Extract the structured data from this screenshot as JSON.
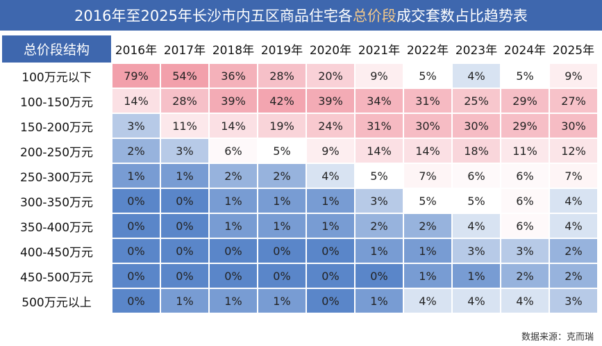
{
  "title": {
    "prefix": "2016年至2025年长沙市内五区商品住宅各",
    "highlight": "总价段",
    "suffix": "成交套数占比趋势表"
  },
  "colors": {
    "header_bg": "#3e67ae",
    "title_highlight": "#f3c98b",
    "high_pink": "#f2a0ab",
    "low_blue": "#5a86c9"
  },
  "source": "数据来源：克而瑞",
  "chart_data": {
    "type": "heatmap",
    "corner_label": "总价段结构",
    "columns": [
      "2016年",
      "2017年",
      "2018年",
      "2019年",
      "2020年",
      "2021年",
      "2022年",
      "2023年",
      "2024年",
      "2025年"
    ],
    "rows": [
      {
        "label": "100万元以下",
        "values": [
          "79%",
          "54%",
          "36%",
          "28%",
          "20%",
          "9%",
          "5%",
          "4%",
          "5%",
          "9%"
        ]
      },
      {
        "label": "100-150万元",
        "values": [
          "14%",
          "28%",
          "39%",
          "42%",
          "39%",
          "34%",
          "31%",
          "25%",
          "29%",
          "27%"
        ]
      },
      {
        "label": "150-200万元",
        "values": [
          "3%",
          "11%",
          "14%",
          "19%",
          "24%",
          "31%",
          "30%",
          "30%",
          "29%",
          "30%"
        ]
      },
      {
        "label": "200-250万元",
        "values": [
          "2%",
          "3%",
          "6%",
          "5%",
          "9%",
          "14%",
          "14%",
          "18%",
          "11%",
          "12%"
        ]
      },
      {
        "label": "250-300万元",
        "values": [
          "1%",
          "1%",
          "2%",
          "2%",
          "4%",
          "5%",
          "7%",
          "6%",
          "6%",
          "7%"
        ]
      },
      {
        "label": "300-350万元",
        "values": [
          "0%",
          "0%",
          "1%",
          "1%",
          "1%",
          "3%",
          "5%",
          "5%",
          "6%",
          "4%"
        ]
      },
      {
        "label": "350-400万元",
        "values": [
          "0%",
          "0%",
          "1%",
          "1%",
          "1%",
          "2%",
          "2%",
          "4%",
          "6%",
          "4%"
        ]
      },
      {
        "label": "400-450万元",
        "values": [
          "0%",
          "0%",
          "0%",
          "0%",
          "0%",
          "1%",
          "1%",
          "3%",
          "3%",
          "2%"
        ]
      },
      {
        "label": "450-500万元",
        "values": [
          "0%",
          "0%",
          "0%",
          "0%",
          "0%",
          "0%",
          "1%",
          "1%",
          "2%",
          "2%"
        ]
      },
      {
        "label": "500万元以上",
        "values": [
          "0%",
          "1%",
          "1%",
          "1%",
          "0%",
          "1%",
          "4%",
          "4%",
          "4%",
          "3%"
        ]
      }
    ]
  }
}
